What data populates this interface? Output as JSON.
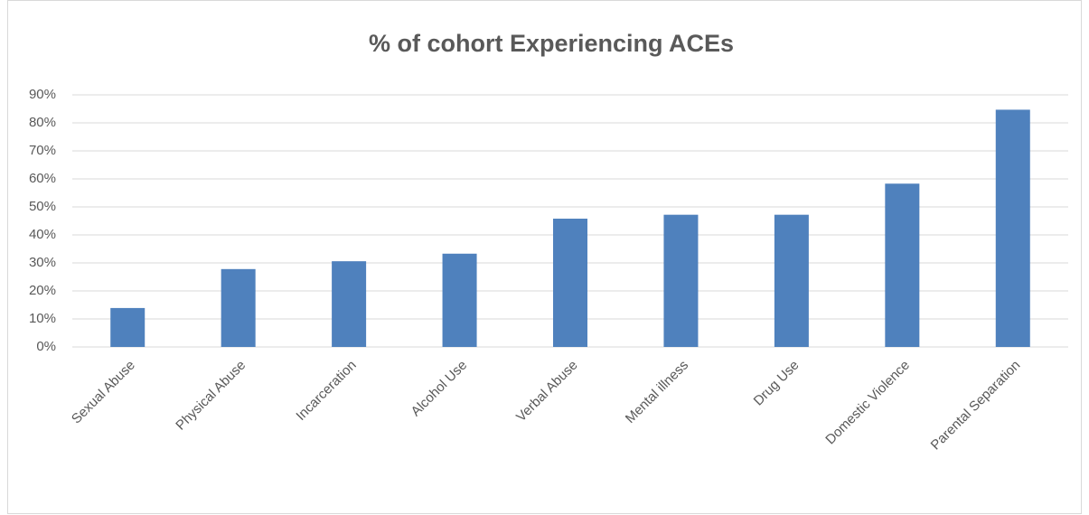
{
  "chart_data": {
    "type": "bar",
    "title": "% of cohort Experiencing ACEs",
    "categories": [
      "Sexual Abuse",
      "Physical Abuse",
      "Incarceration",
      "Alcohol Use",
      "Verbal Abuse",
      "Mental illness",
      "Drug Use",
      "Domestic Violence",
      "Parental Separation"
    ],
    "values": [
      13.9,
      27.8,
      30.6,
      33.3,
      45.8,
      47.2,
      47.2,
      58.3,
      84.7
    ],
    "color": "#4f81bd",
    "ylim": [
      0,
      90
    ],
    "yticks": [
      {
        "value": 0,
        "label": "0%"
      },
      {
        "value": 10,
        "label": "10%"
      },
      {
        "value": 20,
        "label": "20%"
      },
      {
        "value": 30,
        "label": "30%"
      },
      {
        "value": 40,
        "label": "40%"
      },
      {
        "value": 50,
        "label": "50%"
      },
      {
        "value": 60,
        "label": "60%"
      },
      {
        "value": 70,
        "label": "70%"
      },
      {
        "value": 80,
        "label": "80%"
      },
      {
        "value": 90,
        "label": "90%"
      }
    ],
    "grid": true
  }
}
